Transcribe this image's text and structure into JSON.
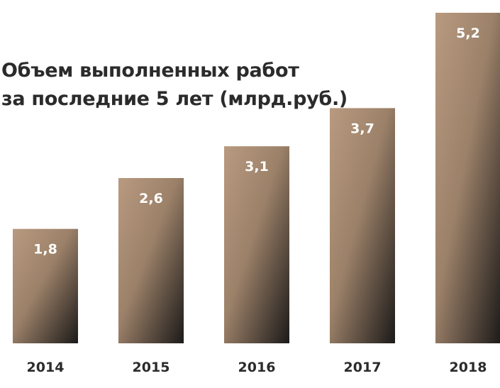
{
  "chart_data": {
    "type": "bar",
    "title_lines": [
      "Объем выполненных работ",
      "за последние 5 лет (млрд.руб.)"
    ],
    "categories": [
      "2014",
      "2015",
      "2016",
      "2017",
      "2018"
    ],
    "values": [
      1.8,
      2.6,
      3.1,
      3.7,
      5.2
    ],
    "value_labels": [
      "1,8",
      "2,6",
      "3,1",
      "3,7",
      "5,2"
    ],
    "xlabel": "",
    "ylabel": "",
    "ylim": [
      0,
      5.2
    ],
    "grid": false,
    "legend": "none",
    "colors": {
      "bar_top": "#b89a80",
      "bar_bottom": "#1c1a19",
      "value_label": "#ffffff",
      "category_label": "#2b2b2b",
      "title": "#2b2b2b"
    }
  }
}
